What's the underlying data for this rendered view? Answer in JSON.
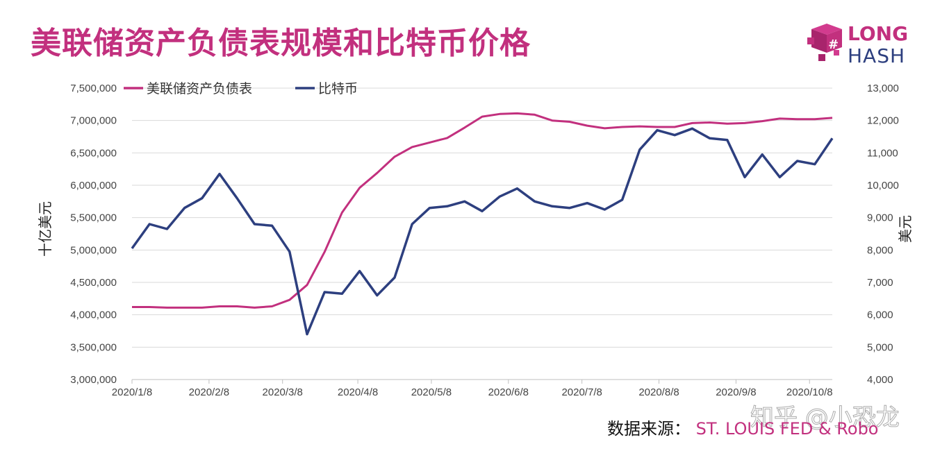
{
  "title": "美联储资产负债表规模和比特币价格",
  "logo": {
    "line1": "LONG",
    "line2": "HASH"
  },
  "source": {
    "label": "数据来源：",
    "value": "ST. LOUIS FED & Robo"
  },
  "watermark": "知乎 @小恐龙",
  "colors": {
    "fed": "#c2307e",
    "btc": "#2d3f7f",
    "title": "#c2307e"
  },
  "chart_data": {
    "type": "line",
    "title": "美联储资产负债表规模和比特币价格",
    "xlabel": "",
    "ylabel": "十亿美元",
    "y2label": "美元",
    "ylim": [
      3000000,
      7500000
    ],
    "y2lim": [
      4000,
      13000
    ],
    "yticks": [
      "7,500,000",
      "7,000,000",
      "6,500,000",
      "6,000,000",
      "5,500,000",
      "5,000,000",
      "4,500,000",
      "4,000,000",
      "3,500,000",
      "3,000,000"
    ],
    "y2ticks": [
      "13,000",
      "12,000",
      "11,000",
      "10,000",
      "9,000",
      "8,000",
      "7,000",
      "6,000",
      "5,000",
      "4,000"
    ],
    "xticks": [
      "2020/1/8",
      "2020/2/8",
      "2020/3/8",
      "2020/4/8",
      "2020/5/8",
      "2020/6/8",
      "2020/7/8",
      "2020/8/8",
      "2020/9/8",
      "2020/10/8"
    ],
    "xtick_index": [
      0,
      4.4,
      8.6,
      12.9,
      17.1,
      21.5,
      25.7,
      30.1,
      34.5,
      38.7
    ],
    "grid": true,
    "legend": "top-left",
    "series": [
      {
        "name": "美联储资产负债表",
        "axis": "left",
        "values": [
          4120000,
          4120000,
          4110000,
          4110000,
          4110000,
          4130000,
          4130000,
          4110000,
          4130000,
          4230000,
          4460000,
          4970000,
          5580000,
          5960000,
          6190000,
          6440000,
          6590000,
          6660000,
          6730000,
          6890000,
          7060000,
          7100000,
          7110000,
          7090000,
          7000000,
          6980000,
          6920000,
          6880000,
          6900000,
          6910000,
          6900000,
          6900000,
          6960000,
          6970000,
          6950000,
          6960000,
          6990000,
          7030000,
          7020000,
          7020000,
          7040000
        ]
      },
      {
        "name": "比特币",
        "axis": "right",
        "values": [
          8050,
          8800,
          8650,
          9300,
          9600,
          10350,
          9600,
          8800,
          8750,
          7950,
          5400,
          6700,
          6650,
          7350,
          6600,
          7150,
          8800,
          9300,
          9350,
          9500,
          9200,
          9650,
          9900,
          9500,
          9350,
          9300,
          9450,
          9250,
          9550,
          11100,
          11700,
          11550,
          11750,
          11450,
          11400,
          10250,
          10950,
          10250,
          10750,
          10650,
          11450
        ]
      }
    ]
  }
}
